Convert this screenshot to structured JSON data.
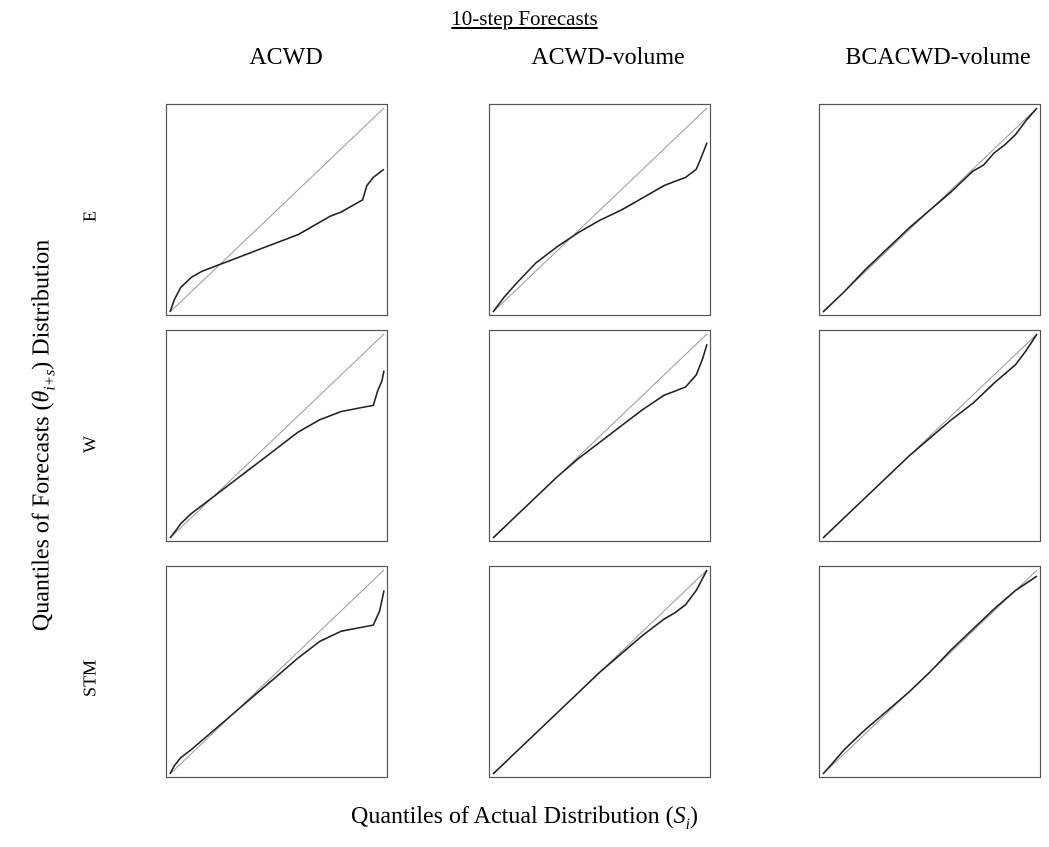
{
  "title": "10-step Forecasts",
  "ylabel": {
    "pre": "Quantiles of Forecasts (",
    "sym": "θ",
    "sub": "i+s",
    "post": ") Distribution"
  },
  "xlabel": {
    "pre": "Quantiles of Actual Distribution (",
    "sym": "S",
    "sub": "i",
    "post": ")"
  },
  "colors": {
    "reference": "#999999",
    "qq": "#222222",
    "frame": "#555555"
  },
  "chart_data": {
    "type": "line",
    "columns": [
      "ACWD",
      "ACWD-volume",
      "BCACWD-volume"
    ],
    "rows": [
      "E",
      "W",
      "STM"
    ],
    "xlim": [
      0,
      1
    ],
    "ylim": [
      0,
      1
    ],
    "reference_line": "y = x",
    "panels": [
      {
        "row": "E",
        "col": "ACWD",
        "x": [
          0,
          0.02,
          0.05,
          0.1,
          0.15,
          0.2,
          0.3,
          0.4,
          0.5,
          0.6,
          0.7,
          0.75,
          0.8,
          0.85,
          0.9,
          0.92,
          0.95,
          1.0
        ],
        "y": [
          0,
          0.06,
          0.12,
          0.17,
          0.2,
          0.22,
          0.26,
          0.3,
          0.34,
          0.38,
          0.44,
          0.47,
          0.49,
          0.52,
          0.55,
          0.62,
          0.66,
          0.7
        ]
      },
      {
        "row": "E",
        "col": "ACWD-volume",
        "x": [
          0,
          0.05,
          0.1,
          0.2,
          0.3,
          0.4,
          0.5,
          0.6,
          0.7,
          0.8,
          0.85,
          0.9,
          0.95,
          0.97,
          1.0
        ],
        "y": [
          0,
          0.07,
          0.13,
          0.24,
          0.32,
          0.39,
          0.45,
          0.5,
          0.56,
          0.62,
          0.64,
          0.66,
          0.7,
          0.75,
          0.83
        ]
      },
      {
        "row": "E",
        "col": "BCACWD-volume",
        "x": [
          0,
          0.1,
          0.2,
          0.3,
          0.4,
          0.5,
          0.6,
          0.7,
          0.75,
          0.8,
          0.85,
          0.9,
          0.95,
          1.0
        ],
        "y": [
          0,
          0.1,
          0.21,
          0.31,
          0.41,
          0.5,
          0.59,
          0.69,
          0.72,
          0.78,
          0.82,
          0.87,
          0.94,
          1.0
        ]
      },
      {
        "row": "W",
        "col": "ACWD",
        "x": [
          0,
          0.03,
          0.05,
          0.1,
          0.2,
          0.3,
          0.4,
          0.5,
          0.6,
          0.7,
          0.8,
          0.9,
          0.95,
          0.97,
          0.99,
          1.0
        ],
        "y": [
          0,
          0.04,
          0.07,
          0.12,
          0.2,
          0.28,
          0.36,
          0.44,
          0.52,
          0.58,
          0.62,
          0.64,
          0.65,
          0.72,
          0.77,
          0.82
        ]
      },
      {
        "row": "W",
        "col": "ACWD-volume",
        "x": [
          0,
          0.1,
          0.2,
          0.3,
          0.4,
          0.5,
          0.6,
          0.7,
          0.8,
          0.85,
          0.9,
          0.95,
          0.98,
          1.0
        ],
        "y": [
          0,
          0.1,
          0.2,
          0.3,
          0.39,
          0.47,
          0.55,
          0.63,
          0.7,
          0.72,
          0.74,
          0.8,
          0.88,
          0.95
        ]
      },
      {
        "row": "W",
        "col": "BCACWD-volume",
        "x": [
          0,
          0.1,
          0.2,
          0.3,
          0.4,
          0.5,
          0.6,
          0.7,
          0.8,
          0.9,
          0.95,
          1.0
        ],
        "y": [
          0,
          0.1,
          0.2,
          0.3,
          0.4,
          0.49,
          0.58,
          0.66,
          0.76,
          0.85,
          0.92,
          1.0
        ]
      },
      {
        "row": "STM",
        "col": "ACWD",
        "x": [
          0,
          0.02,
          0.05,
          0.1,
          0.2,
          0.3,
          0.4,
          0.5,
          0.6,
          0.7,
          0.8,
          0.9,
          0.95,
          0.98,
          1.0
        ],
        "y": [
          0,
          0.04,
          0.08,
          0.12,
          0.21,
          0.3,
          0.39,
          0.48,
          0.57,
          0.65,
          0.7,
          0.72,
          0.73,
          0.8,
          0.9
        ]
      },
      {
        "row": "STM",
        "col": "ACWD-volume",
        "x": [
          0,
          0.1,
          0.2,
          0.3,
          0.4,
          0.5,
          0.6,
          0.7,
          0.8,
          0.85,
          0.9,
          0.95,
          1.0
        ],
        "y": [
          0,
          0.1,
          0.2,
          0.3,
          0.4,
          0.5,
          0.59,
          0.68,
          0.76,
          0.79,
          0.83,
          0.9,
          1.0
        ]
      },
      {
        "row": "STM",
        "col": "BCACWD-volume",
        "x": [
          0,
          0.05,
          0.1,
          0.2,
          0.3,
          0.4,
          0.5,
          0.6,
          0.7,
          0.8,
          0.9,
          1.0
        ],
        "y": [
          0,
          0.06,
          0.12,
          0.22,
          0.31,
          0.4,
          0.5,
          0.61,
          0.71,
          0.81,
          0.9,
          0.97
        ]
      }
    ]
  }
}
